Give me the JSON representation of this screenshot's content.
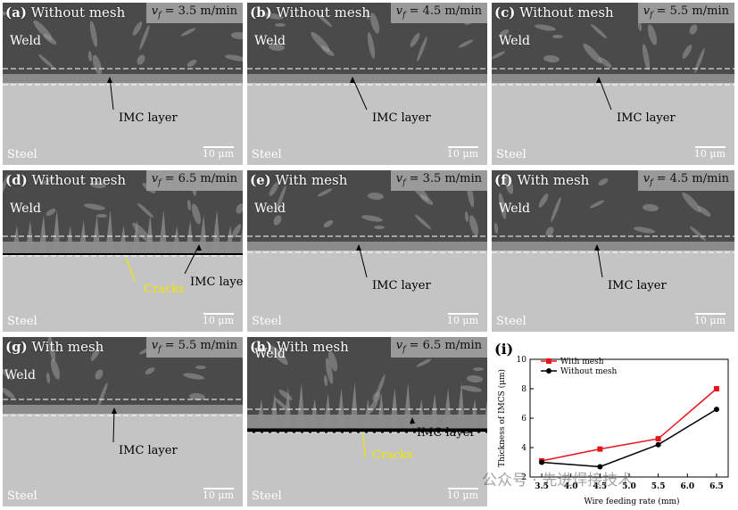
{
  "panels": [
    {
      "letter": "(a)",
      "title": "Without mesh",
      "speed_num": "= 3.5 m/min",
      "weld": "Weld",
      "imc": "IMC layer",
      "steel": "Steel",
      "scale": "10 μm"
    },
    {
      "letter": "(b)",
      "title": "Without mesh",
      "speed_num": "= 4.5 m/min",
      "weld": "Weld",
      "imc": "IMC layer",
      "steel": "Steel",
      "scale": "10 μm"
    },
    {
      "letter": "(c)",
      "title": "Without mesh",
      "speed_num": "= 5.5 m/min",
      "weld": "Weld",
      "imc": "IMC layer",
      "steel": "Steel",
      "scale": "10 μm"
    },
    {
      "letter": "(d)",
      "title": "Without mesh",
      "speed_num": "= 6.5 m/min",
      "weld": "Weld",
      "imc": "IMC layer",
      "steel": "Steel",
      "scale": "10 μm",
      "cracks": "Cracks"
    },
    {
      "letter": "(e)",
      "title": "With mesh",
      "speed_num": "= 3.5 m/min",
      "weld": "Weld",
      "imc": "IMC layer",
      "steel": "Steel",
      "scale": "10 μm"
    },
    {
      "letter": "(f)",
      "title": "With mesh",
      "speed_num": "= 4.5 m/min",
      "weld": "Weld",
      "imc": "IMC layer",
      "steel": "Steel",
      "scale": "10 μm"
    },
    {
      "letter": "(g)",
      "title": "With mesh",
      "speed_num": "= 5.5 m/min",
      "weld": "Weld",
      "imc": "IMC layer",
      "steel": "Steel",
      "scale": "10 μm"
    },
    {
      "letter": "(h)",
      "title": "With mesh",
      "speed_num": "= 6.5 m/min",
      "weld": "Weld",
      "imc": "IMC layer",
      "steel": "Steel",
      "scale": "10 μm",
      "cracks": "Cracks"
    }
  ],
  "speed_symbol": "v",
  "speed_sub": "f",
  "chart_data": {
    "type": "line",
    "panel_label": "(i)",
    "xlabel": "Wire feeding rate (mm)",
    "ylabel": "Thickness of IMCS (μm)",
    "x": [
      3.5,
      4.5,
      5.5,
      6.5
    ],
    "xticks": [
      "3.5",
      "4.0",
      "4.5",
      "5.0",
      "5.5",
      "6.0",
      "6.5"
    ],
    "yticks": [
      "2",
      "4",
      "6",
      "8",
      "10"
    ],
    "xlim": [
      3.3,
      6.7
    ],
    "ylim": [
      2,
      10
    ],
    "legend_position": "top-left",
    "series": [
      {
        "name": "With mesh",
        "values": [
          3.1,
          3.9,
          4.6,
          8.0
        ],
        "color": "#e8141b",
        "marker": "square"
      },
      {
        "name": "Without mesh",
        "values": [
          3.0,
          2.7,
          4.2,
          6.6
        ],
        "color": "#000000",
        "marker": "circle"
      }
    ]
  },
  "watermark": "公众号 · 先进焊接技术"
}
